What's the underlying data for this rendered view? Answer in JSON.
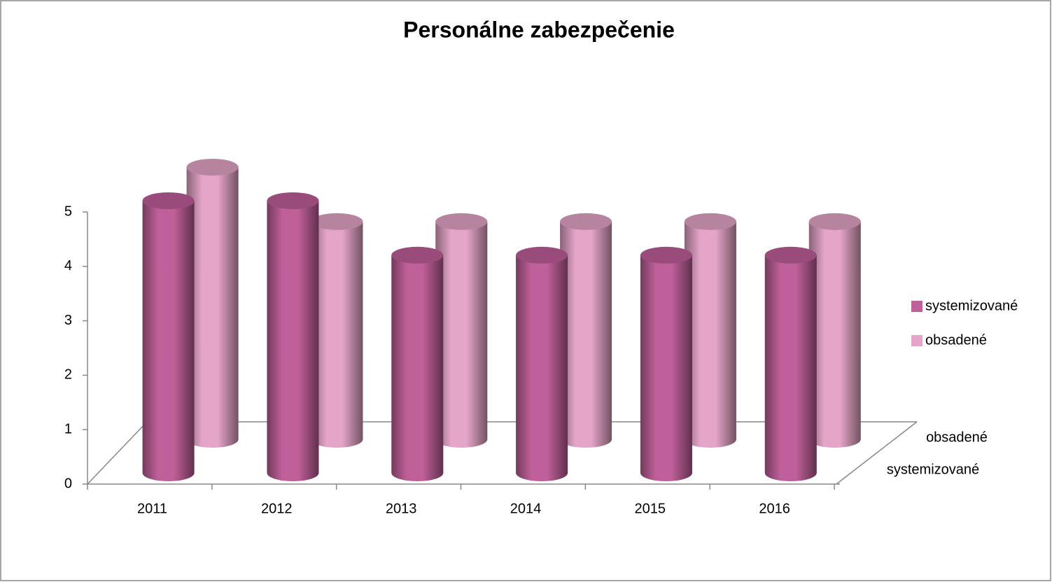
{
  "chart_data": {
    "type": "bar3d",
    "title": "Personálne zabezpečenie",
    "categories": [
      "2011",
      "2012",
      "2013",
      "2014",
      "2015",
      "2016"
    ],
    "series": [
      {
        "name": "systemizované",
        "color": "#c0609a",
        "values": [
          5,
          5,
          4,
          4,
          4,
          4
        ]
      },
      {
        "name": "obsadené",
        "color": "#e5a5c8",
        "values": [
          5,
          4,
          4,
          4,
          4,
          4
        ]
      }
    ],
    "ylim": [
      0,
      5
    ],
    "yticks": [
      0,
      1,
      2,
      3,
      4,
      5
    ],
    "legend": "right"
  }
}
